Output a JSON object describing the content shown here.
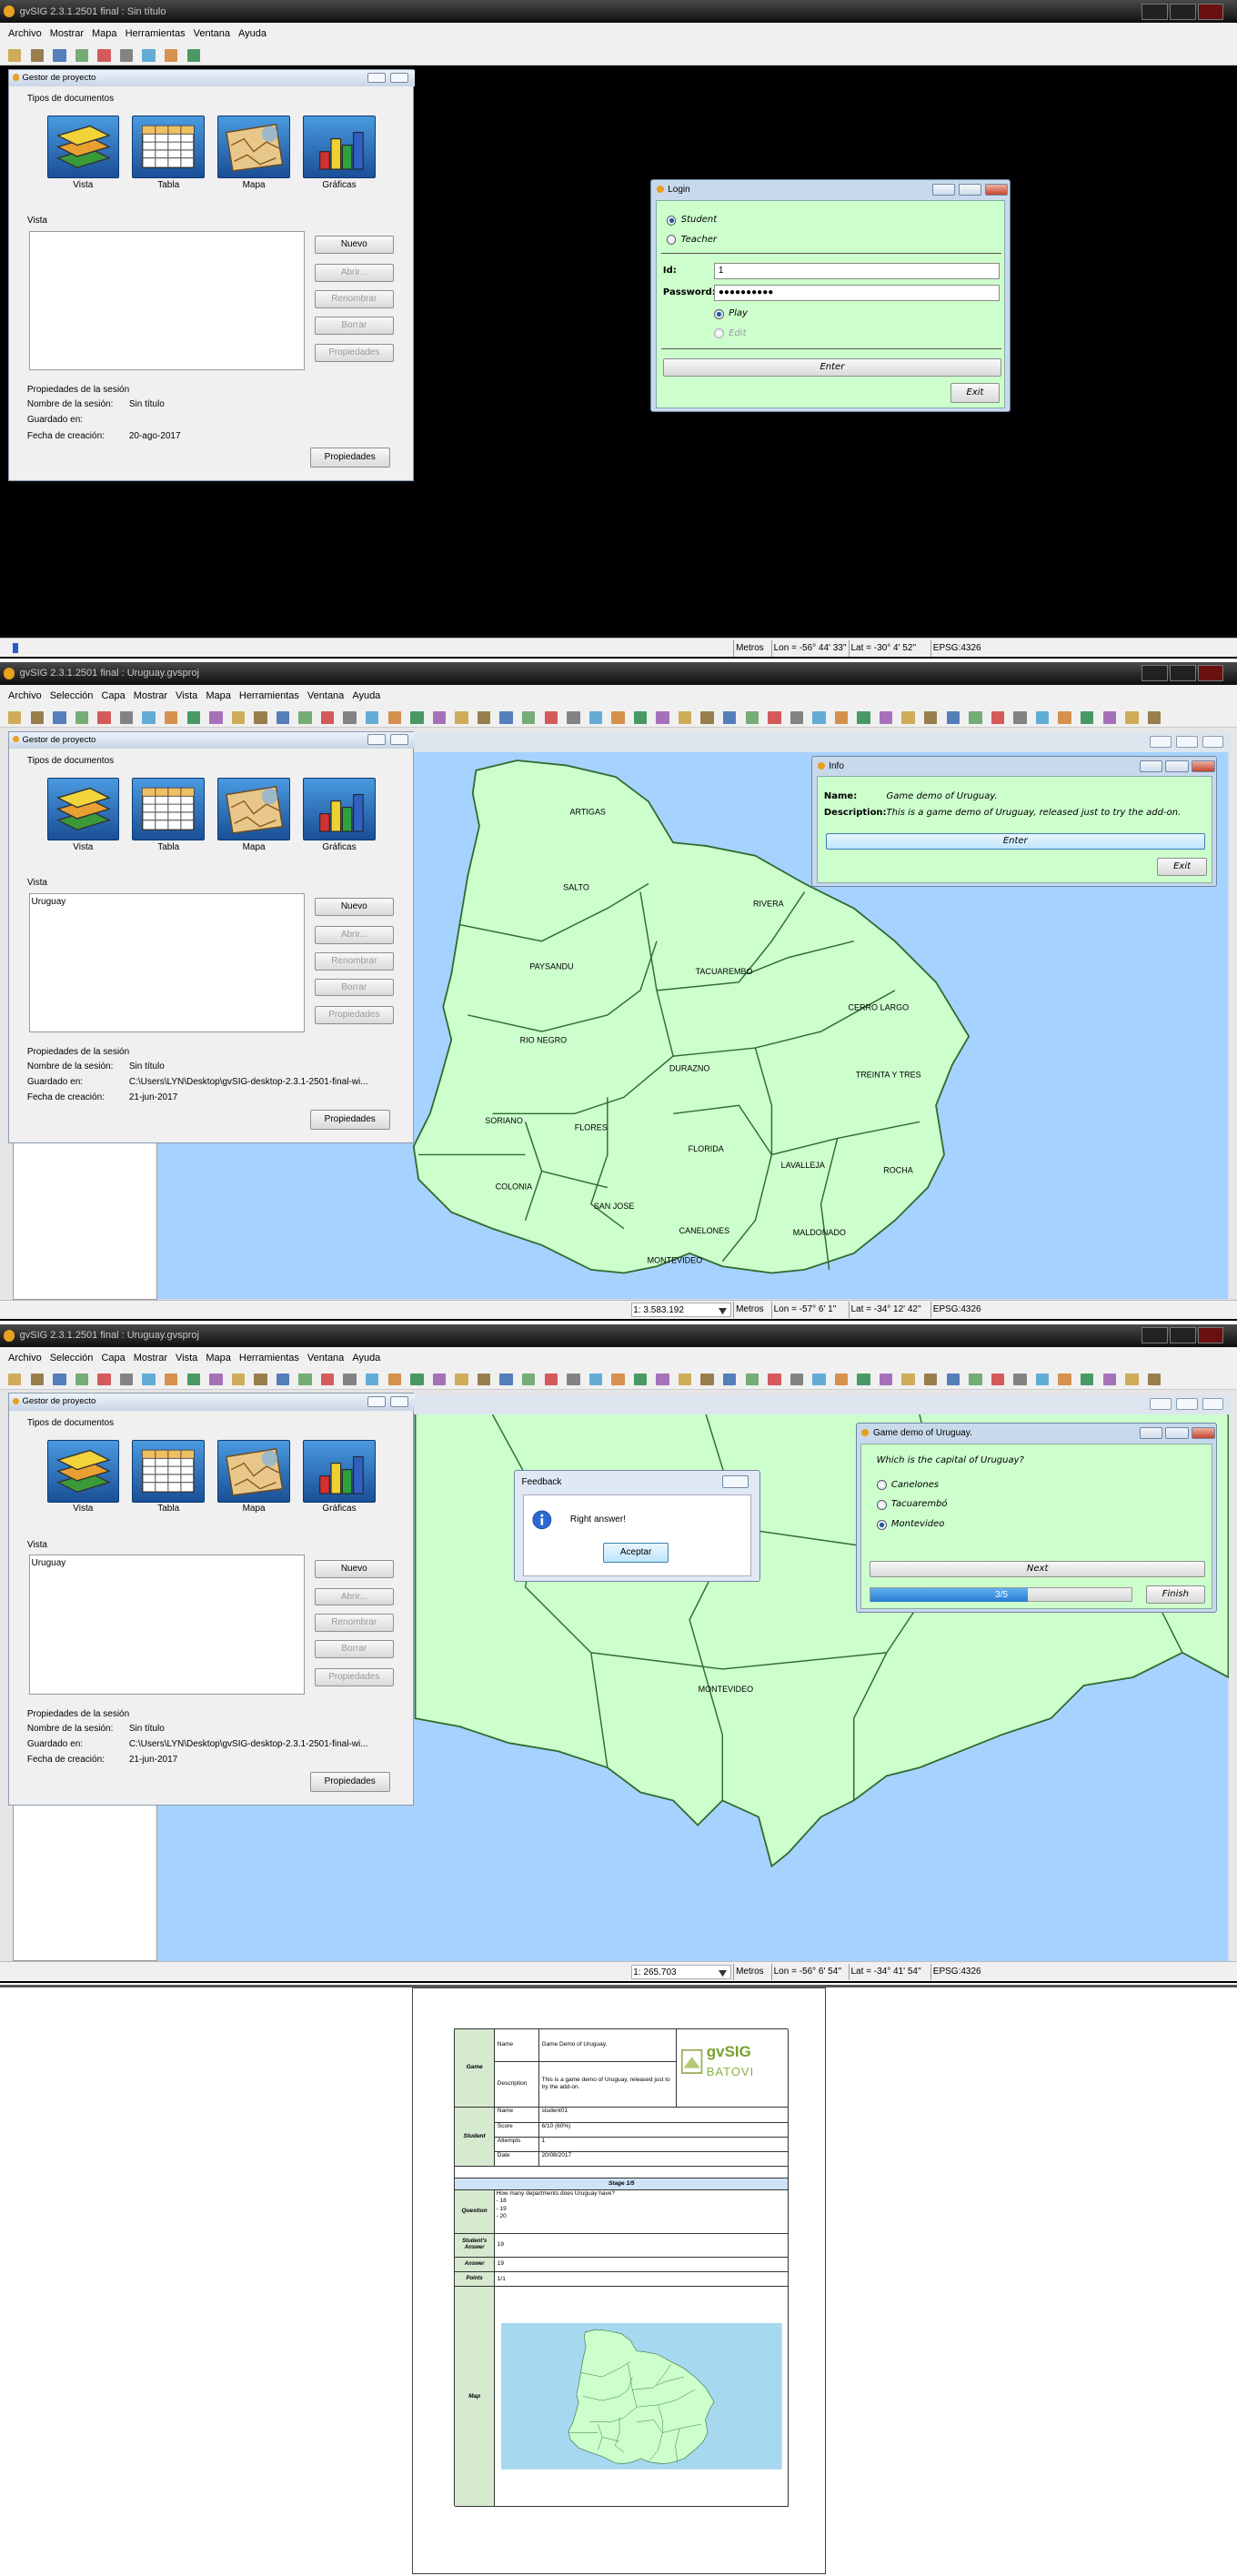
{
  "screens": [
    {
      "title": "gvSIG 2.3.1.2501 final : Sin título",
      "menu": [
        "Archivo",
        "Mostrar",
        "Mapa",
        "Herramientas",
        "Ventana",
        "Ayuda"
      ],
      "project_manager": {
        "title": "Gestor de proyecto",
        "doc_types_label": "Tipos de documentos",
        "doc_types": [
          "Vista",
          "Tabla",
          "Mapa",
          "Gráficas"
        ],
        "section_label": "Vista",
        "list": [],
        "buttons": [
          "Nuevo",
          "Abrir...",
          "Renombrar",
          "Borrar",
          "Propiedades"
        ],
        "session_label": "Propiedades de la sesión",
        "session": [
          {
            "label": "Nombre de la sesión:",
            "value": "Sin título"
          },
          {
            "label": "Guardado en:"
          },
          {
            "label": "Fecha de creación:",
            "value": "20-ago-2017"
          }
        ],
        "properties_button": "Propiedades"
      },
      "dialogs": [
        {
          "kind": "login",
          "title": "Login",
          "roles": [
            {
              "label": "Student",
              "selected": true
            },
            {
              "label": "Teacher"
            }
          ],
          "fields": [
            {
              "label": "Id:",
              "value": "1"
            },
            {
              "label": "Password:",
              "value": "●●●●●●●●●●"
            }
          ],
          "modes": [
            {
              "label": "Play",
              "selected": true
            },
            {
              "label": "Edit",
              "disabled": true
            }
          ],
          "enter": "Enter",
          "exit": "Exit"
        }
      ],
      "status": {
        "units": "Metros",
        "lon": "Lon = -56° 44' 33''",
        "lat": "Lat = -30° 4' 52''",
        "crs": "EPSG:4326"
      }
    },
    {
      "title": "gvSIG 2.3.1.2501 final : Uruguay.gvsproj",
      "menu": [
        "Archivo",
        "Selección",
        "Capa",
        "Mostrar",
        "Vista",
        "Mapa",
        "Herramientas",
        "Ventana",
        "Ayuda"
      ],
      "project_manager": {
        "title": "Gestor de proyecto",
        "doc_types_label": "Tipos de documentos",
        "doc_types": [
          "Vista",
          "Tabla",
          "Mapa",
          "Gráficas"
        ],
        "section_label": "Vista",
        "list": [
          "Uruguay"
        ],
        "buttons": [
          "Nuevo",
          "Abrir...",
          "Renombrar",
          "Borrar",
          "Propiedades"
        ],
        "session_label": "Propiedades de la sesión",
        "session": [
          {
            "label": "Nombre de la sesión:",
            "value": "Sin título"
          },
          {
            "label": "Guardado en:",
            "value": "C:\\Users\\LYN\\Desktop\\gvSIG-desktop-2.3.1-2501-final-wi..."
          },
          {
            "label": "Fecha de creación:",
            "value": "21-jun-2017"
          }
        ],
        "properties_button": "Propiedades"
      },
      "map_labels": [
        "ARTIGAS",
        "SALTO",
        "RIVERA",
        "PAYSANDU",
        "TACUAREMBO",
        "CERRO LARGO",
        "RIO NEGRO",
        "DURAZNO",
        "TREINTA Y TRES",
        "SORIANO",
        "FLORES",
        "FLORIDA",
        "LAVALLEJA",
        "ROCHA",
        "COLONIA",
        "SAN JOSE",
        "CANELONES",
        "MALDONADO",
        "MONTEVIDEO"
      ],
      "dialogs": [
        {
          "kind": "info",
          "title": "Info",
          "fields": [
            {
              "label": "Name:",
              "value": "Game demo of Uruguay."
            },
            {
              "label": "Description:",
              "value": "This is a game demo of Uruguay, released just to try the add-on."
            }
          ],
          "enter": "Enter",
          "exit": "Exit"
        }
      ],
      "status": {
        "scale": "1: 3.583.192",
        "units": "Metros",
        "lon": "Lon = -57° 6' 1''",
        "lat": "Lat = -34° 12' 42''",
        "crs": "EPSG:4326"
      }
    },
    {
      "title": "gvSIG 2.3.1.2501 final : Uruguay.gvsproj",
      "menu": [
        "Archivo",
        "Selección",
        "Capa",
        "Mostrar",
        "Vista",
        "Mapa",
        "Herramientas",
        "Ventana",
        "Ayuda"
      ],
      "project_manager": {
        "title": "Gestor de proyecto",
        "doc_types_label": "Tipos de documentos",
        "doc_types": [
          "Vista",
          "Tabla",
          "Mapa",
          "Gráficas"
        ],
        "section_label": "Vista",
        "list": [
          "Uruguay"
        ],
        "buttons": [
          "Nuevo",
          "Abrir...",
          "Renombrar",
          "Borrar",
          "Propiedades"
        ],
        "session_label": "Propiedades de la sesión",
        "session": [
          {
            "label": "Nombre de la sesión:",
            "value": "Sin título"
          },
          {
            "label": "Guardado en:",
            "value": "C:\\Users\\LYN\\Desktop\\gvSIG-desktop-2.3.1-2501-final-wi..."
          },
          {
            "label": "Fecha de creación:",
            "value": "21-jun-2017"
          }
        ],
        "properties_button": "Propiedades"
      },
      "map_labels": [
        "MONTEVIDEO"
      ],
      "dialogs": [
        {
          "kind": "feedback",
          "title": "Feedback",
          "message": "Right answer!",
          "button": "Aceptar"
        },
        {
          "kind": "game",
          "title": "Game demo of Uruguay.",
          "question": "Which is the capital of Uruguay?",
          "options": [
            {
              "label": "Canelones"
            },
            {
              "label": "Tacuarembó"
            },
            {
              "label": "Montevideo",
              "selected": true
            }
          ],
          "next": "Next",
          "progress": "3/5",
          "finish": "Finish"
        }
      ],
      "status": {
        "scale": "1: 265.703",
        "units": "Metros",
        "lon": "Lon = -56° 6' 54''",
        "lat": "Lat = -34° 41' 54''",
        "crs": "EPSG:4326"
      }
    }
  ],
  "report": {
    "game_label": "Game",
    "game": [
      {
        "label": "Name",
        "value": "Game Demo of Uruguay."
      },
      {
        "label": "Description",
        "value": "This is a game demo of Uruguay, released just to try the add-on."
      }
    ],
    "logo": {
      "top": "gvSIG",
      "bottom": "BATOVI"
    },
    "student_label": "Student",
    "student": [
      {
        "label": "Name",
        "value": "student01"
      },
      {
        "label": "Score",
        "value": "6/10 (60%)"
      },
      {
        "label": "Attempts",
        "value": "1"
      },
      {
        "label": "Date",
        "value": "20/08/2017"
      }
    ],
    "stage": "Stage 1/5",
    "question": {
      "label": "Question",
      "lines": [
        "How many departments does Uruguay have?",
        "- 18",
        "- 19",
        "- 20"
      ]
    },
    "rows": [
      {
        "label": "Student's Answer",
        "value": "19"
      },
      {
        "label": "Answer",
        "value": "19"
      },
      {
        "label": "Points",
        "value": "1/1"
      }
    ],
    "map_label": "Map"
  }
}
